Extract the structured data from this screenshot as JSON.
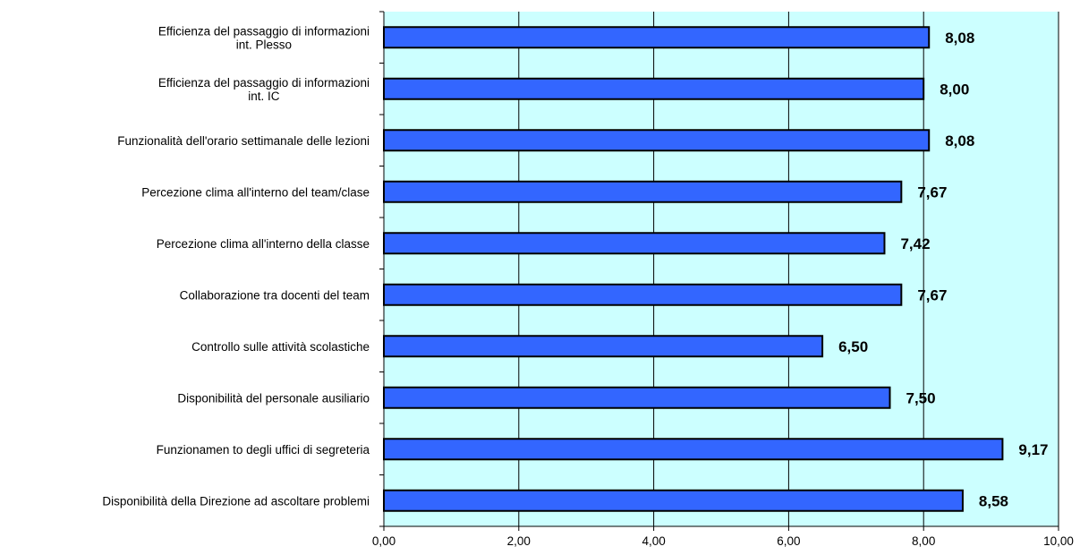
{
  "chart_data": {
    "type": "bar",
    "orientation": "horizontal",
    "title": "",
    "xlabel": "",
    "ylabel": "",
    "xlim": [
      0,
      10
    ],
    "x_ticks": [
      "0,00",
      "2,00",
      "4,00",
      "6,00",
      "8,00",
      "10,00"
    ],
    "x_tick_values": [
      0,
      2,
      4,
      6,
      8,
      10
    ],
    "grid": "vertical",
    "legend": "none",
    "categories": [
      [
        "Efficienza del passaggio di informazioni",
        "int. Plesso"
      ],
      [
        "Efficienza del passaggio di informazioni",
        "int. IC"
      ],
      [
        "Funzionalità dell'orario settimanale delle lezioni"
      ],
      [
        "Percezione clima all'interno del team/clase"
      ],
      [
        "Percezione clima all'interno della classe"
      ],
      [
        "Collaborazione tra docenti del team"
      ],
      [
        "Controllo sulle attività scolastiche"
      ],
      [
        "Disponibilità del personale ausiliario"
      ],
      [
        "Funzionamen to degli uffici di segreteria"
      ],
      [
        "Disponibilità della Direzione ad ascoltare problemi"
      ]
    ],
    "values": [
      8.08,
      8.0,
      8.08,
      7.67,
      7.42,
      7.67,
      6.5,
      7.5,
      9.17,
      8.58
    ],
    "data_labels": [
      "8,08",
      "8,00",
      "8,08",
      "7,67",
      "7,42",
      "7,67",
      "6,50",
      "7,50",
      "9,17",
      "8,58"
    ],
    "colors": {
      "bar_fill": "#3366ff",
      "bar_stroke": "#000000",
      "plot_background": "#ccffff",
      "gridline": "#000000",
      "axis": "#000000"
    }
  }
}
